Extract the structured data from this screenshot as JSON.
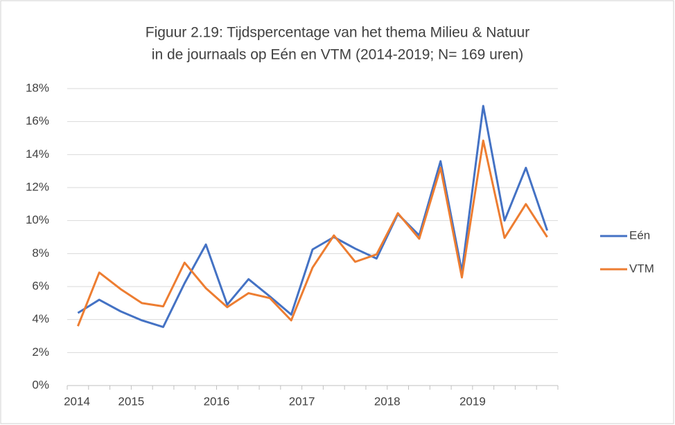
{
  "chart_data": {
    "type": "line",
    "title": [
      "Figuur 2.19: Tijdspercentage van het thema Milieu & Natuur",
      "in de journaals op Eén en VTM (2014-2019; N= 169 uren)"
    ],
    "categories": [
      "2014",
      null,
      null,
      "2015",
      null,
      null,
      null,
      "2016",
      null,
      null,
      null,
      "2017",
      null,
      null,
      null,
      "2018",
      null,
      null,
      null,
      "2019",
      null,
      null,
      null
    ],
    "series": [
      {
        "name": "Eén",
        "color": "#4472c4",
        "values": [
          4.4,
          5.2,
          4.5,
          3.95,
          3.55,
          6.2,
          8.55,
          4.9,
          6.45,
          5.4,
          4.3,
          8.25,
          9.0,
          8.3,
          7.7,
          10.4,
          9.1,
          13.6,
          6.9,
          16.95,
          10.0,
          13.2,
          9.4
        ]
      },
      {
        "name": "VTM",
        "color": "#ed7d31",
        "values": [
          3.6,
          6.85,
          5.85,
          5.0,
          4.8,
          7.45,
          5.9,
          4.75,
          5.6,
          5.3,
          3.95,
          7.15,
          9.1,
          7.5,
          7.95,
          10.45,
          8.9,
          13.2,
          6.55,
          14.85,
          8.95,
          11.0,
          9.0
        ]
      }
    ],
    "ylim": [
      0,
      18
    ],
    "yticks": [
      {
        "value": 0,
        "label": "0%"
      },
      {
        "value": 2,
        "label": "2%"
      },
      {
        "value": 4,
        "label": "4%"
      },
      {
        "value": 6,
        "label": "6%"
      },
      {
        "value": 8,
        "label": "8%"
      },
      {
        "value": 10,
        "label": "10%"
      },
      {
        "value": 12,
        "label": "12%"
      },
      {
        "value": 14,
        "label": "14%"
      },
      {
        "value": 16,
        "label": "16%"
      },
      {
        "value": 18,
        "label": "18%"
      }
    ],
    "grid": true,
    "legend": "right"
  }
}
